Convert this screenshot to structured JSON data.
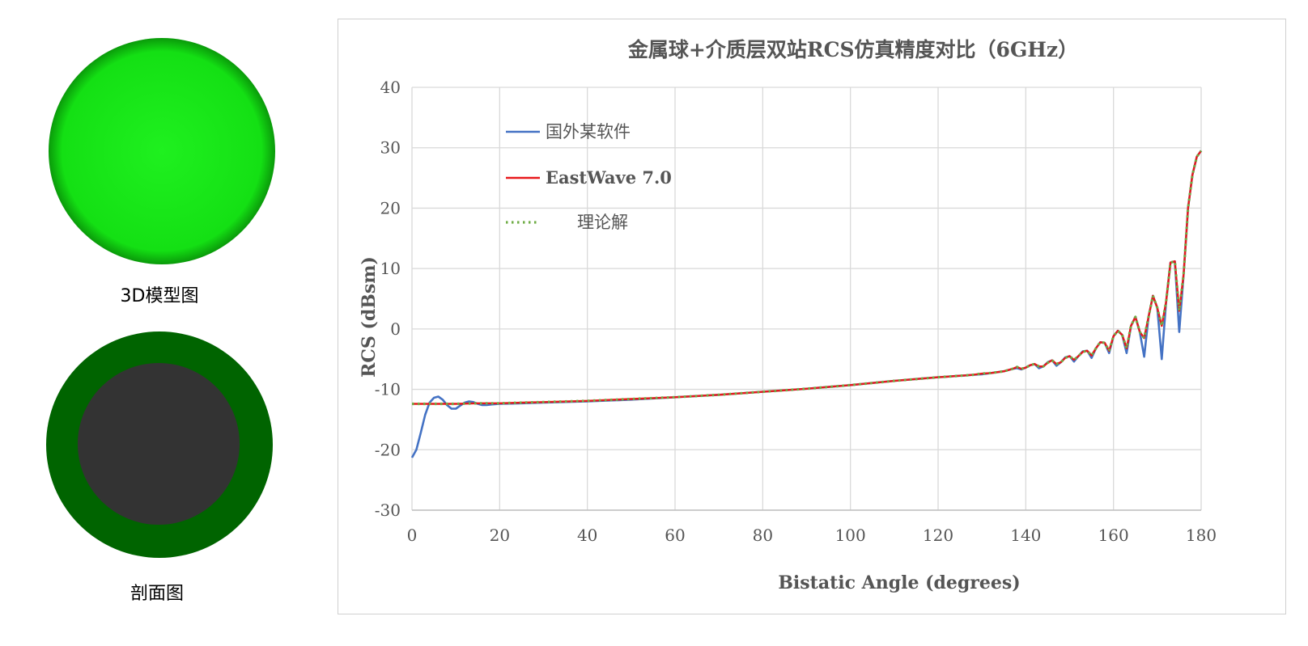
{
  "figures": {
    "model_label": "3D模型图",
    "section_label": "剖面图",
    "colors": {
      "sphere": "#1fe01f",
      "sphere_edge": "#0a9a0a",
      "shell": "#006400",
      "core": "#333333"
    }
  },
  "chart_data": {
    "type": "line",
    "title": "金属球+介质层双站RCS仿真精度对比（6GHz）",
    "xlabel": "Bistatic Angle (degrees)",
    "ylabel": "RCS (dBsm)",
    "xlim": [
      0,
      180
    ],
    "ylim": [
      -30,
      40
    ],
    "xticks": [
      "0",
      "20",
      "40",
      "60",
      "80",
      "100",
      "120",
      "140",
      "160",
      "180"
    ],
    "yticks": [
      "40",
      "30",
      "20",
      "10",
      "0",
      "-10",
      "-20",
      "-30"
    ],
    "grid": true,
    "legend_position": "top-left",
    "series": [
      {
        "name": "国外某软件",
        "color": "#4472c4",
        "style": "solid",
        "x": [
          0,
          1,
          2,
          3,
          4,
          5,
          6,
          7,
          8,
          9,
          10,
          11,
          12,
          13,
          14,
          15,
          16,
          17,
          18,
          20,
          25,
          30,
          40,
          50,
          60,
          70,
          80,
          90,
          100,
          110,
          120,
          122,
          124,
          126,
          128,
          130,
          132,
          134,
          135,
          136,
          137,
          138,
          139,
          140,
          141,
          142,
          143,
          144,
          145,
          146,
          147,
          148,
          149,
          150,
          151,
          152,
          153,
          154,
          155,
          156,
          157,
          158,
          159,
          160,
          161,
          162,
          163,
          164,
          165,
          166,
          167,
          168,
          169,
          170,
          171,
          172,
          173,
          174,
          175,
          176,
          177,
          178,
          179,
          180
        ],
        "y": [
          -21.3,
          -20.0,
          -17.2,
          -14.2,
          -12.2,
          -11.4,
          -11.2,
          -11.7,
          -12.6,
          -13.2,
          -13.2,
          -12.7,
          -12.2,
          -12.0,
          -12.1,
          -12.4,
          -12.6,
          -12.6,
          -12.5,
          -12.4,
          -12.3,
          -12.2,
          -12.0,
          -11.7,
          -11.3,
          -10.9,
          -10.4,
          -9.9,
          -9.3,
          -8.6,
          -8.0,
          -7.9,
          -7.8,
          -7.7,
          -7.6,
          -7.5,
          -7.3,
          -7.1,
          -7.0,
          -6.8,
          -6.6,
          -6.5,
          -6.7,
          -6.4,
          -6.0,
          -5.8,
          -6.5,
          -6.2,
          -5.5,
          -5.2,
          -6.1,
          -5.5,
          -4.7,
          -4.5,
          -5.4,
          -4.5,
          -3.7,
          -3.6,
          -4.8,
          -3.2,
          -2.2,
          -2.3,
          -4.0,
          -1.2,
          -0.3,
          -1.0,
          -4.0,
          0.5,
          2.0,
          -0.5,
          -4.6,
          2.0,
          5.5,
          3.5,
          -5.0,
          4.5,
          11.0,
          11.2,
          -0.5,
          9.0,
          20.0,
          25.5,
          28.5,
          29.5
        ]
      },
      {
        "name": "EastWave 7.0",
        "color": "#e8191c",
        "style": "solid",
        "x": [
          0,
          5,
          10,
          15,
          20,
          25,
          30,
          40,
          50,
          60,
          70,
          80,
          90,
          100,
          110,
          120,
          122,
          124,
          126,
          128,
          130,
          132,
          134,
          135,
          136,
          137,
          138,
          139,
          140,
          141,
          142,
          143,
          144,
          145,
          146,
          147,
          148,
          149,
          150,
          151,
          152,
          153,
          154,
          155,
          156,
          157,
          158,
          159,
          160,
          161,
          162,
          163,
          164,
          165,
          166,
          167,
          168,
          169,
          170,
          171,
          172,
          173,
          174,
          175,
          176,
          177,
          178,
          179,
          180
        ],
        "y": [
          -12.4,
          -12.4,
          -12.4,
          -12.3,
          -12.3,
          -12.2,
          -12.1,
          -11.9,
          -11.6,
          -11.3,
          -10.9,
          -10.4,
          -9.9,
          -9.3,
          -8.6,
          -8.0,
          -7.9,
          -7.8,
          -7.7,
          -7.6,
          -7.4,
          -7.3,
          -7.1,
          -7.0,
          -6.8,
          -6.6,
          -6.3,
          -6.6,
          -6.4,
          -6.0,
          -5.8,
          -6.2,
          -6.2,
          -5.6,
          -5.2,
          -5.8,
          -5.5,
          -4.8,
          -4.5,
          -5.1,
          -4.5,
          -3.8,
          -3.6,
          -4.4,
          -3.2,
          -2.2,
          -2.3,
          -3.6,
          -1.2,
          -0.3,
          -1.0,
          -3.2,
          0.5,
          2.0,
          -0.5,
          -1.5,
          2.0,
          5.5,
          3.5,
          0.5,
          4.5,
          11.0,
          11.2,
          3.0,
          9.0,
          20.0,
          25.5,
          28.5,
          29.5
        ]
      },
      {
        "name": "理论解",
        "color": "#70ad47",
        "style": "dotted",
        "x": [
          0,
          5,
          10,
          15,
          20,
          25,
          30,
          40,
          50,
          60,
          70,
          80,
          90,
          100,
          110,
          120,
          122,
          124,
          126,
          128,
          130,
          132,
          134,
          135,
          136,
          137,
          138,
          139,
          140,
          141,
          142,
          143,
          144,
          145,
          146,
          147,
          148,
          149,
          150,
          151,
          152,
          153,
          154,
          155,
          156,
          157,
          158,
          159,
          160,
          161,
          162,
          163,
          164,
          165,
          166,
          167,
          168,
          169,
          170,
          171,
          172,
          173,
          174,
          175,
          176,
          177,
          178,
          179,
          180
        ],
        "y": [
          -12.4,
          -12.4,
          -12.4,
          -12.3,
          -12.3,
          -12.2,
          -12.1,
          -11.9,
          -11.6,
          -11.3,
          -10.9,
          -10.4,
          -9.9,
          -9.3,
          -8.6,
          -8.0,
          -7.9,
          -7.8,
          -7.7,
          -7.6,
          -7.4,
          -7.3,
          -7.1,
          -7.0,
          -6.8,
          -6.6,
          -6.3,
          -6.6,
          -6.4,
          -6.0,
          -5.8,
          -6.2,
          -6.2,
          -5.6,
          -5.2,
          -5.8,
          -5.5,
          -4.8,
          -4.5,
          -5.1,
          -4.5,
          -3.8,
          -3.6,
          -4.4,
          -3.2,
          -2.2,
          -2.3,
          -3.6,
          -1.2,
          -0.3,
          -1.0,
          -3.2,
          0.5,
          2.0,
          -0.5,
          -1.5,
          2.0,
          5.5,
          3.5,
          0.5,
          4.5,
          11.0,
          11.2,
          3.0,
          9.0,
          20.0,
          25.5,
          28.5,
          29.5
        ]
      }
    ]
  }
}
